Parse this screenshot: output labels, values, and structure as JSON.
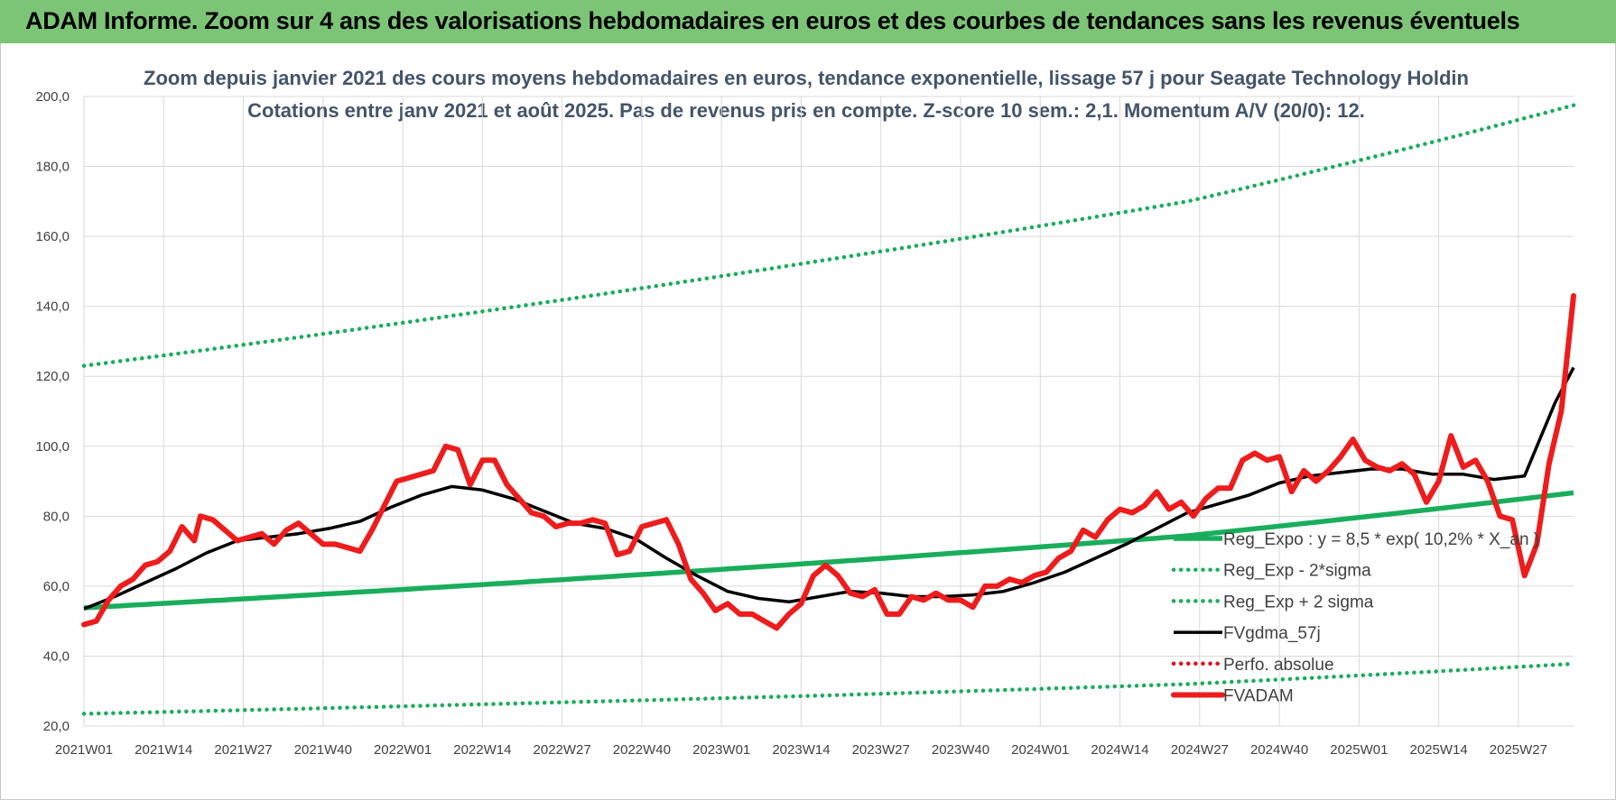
{
  "banner": {
    "title": "ADAM Informe. Zoom sur 4 ans des valorisations hebdomadaires en euros et des courbes de tendances sans les revenus éventuels"
  },
  "colors": {
    "banner": "#7cc576",
    "trend": "#19ad5c",
    "sigma": "#19ad5c",
    "fvgdma": "#000000",
    "perfo": "#e0101a",
    "fvadam": "#ee1c1c",
    "grid": "#d9d9d9",
    "subtitle": "#44546a"
  },
  "chart_data": {
    "type": "line",
    "subtitle": [
      "Zoom depuis janvier 2021 des cours moyens hebdomadaires en euros, tendance exponentielle, lissage 57 j pour Seagate Technology Holdin",
      "Cotations entre janv 2021 et août 2025.  Pas de revenus pris en compte. Z-score 10 sem.: 2,1. Momentum A/V (20/0): 12."
    ],
    "xlabel": "",
    "ylabel": "",
    "ylim": [
      20,
      200
    ],
    "y_ticks": [
      "20,0",
      "40,0",
      "60,0",
      "80,0",
      "100,0",
      "120,0",
      "140,0",
      "160,0",
      "180,0",
      "200,0"
    ],
    "x_ticks": [
      "2021W01",
      "2021W14",
      "2021W27",
      "2021W40",
      "2022W01",
      "2022W14",
      "2022W27",
      "2022W40",
      "2023W01",
      "2023W14",
      "2023W27",
      "2023W40",
      "2024W01",
      "2024W14",
      "2024W27",
      "2024W40",
      "2025W01",
      "2025W14",
      "2025W27"
    ],
    "n_weeks": 244,
    "grid": true,
    "legend_position": "bottom-right, inside plot",
    "legend": [
      "Reg_Expo : y = 8,5 * exp( 10,2% *  X_an )",
      "Reg_Exp - 2*sigma",
      "Reg_Exp + 2 sigma",
      "FVgdma_57j",
      "Perfo. absolue",
      "FVADAM"
    ],
    "series": [
      {
        "name": "Reg_Expo : y = 8,5 * exp( 10,2% *  X_an )",
        "style": "solid-thick",
        "color": "#19ad5c",
        "x": [
          0,
          60,
          120,
          180,
          243
        ],
        "values": [
          53.8,
          59.9,
          66.7,
          74.4,
          86.7
        ]
      },
      {
        "name": "Reg_Exp - 2*sigma",
        "style": "dotted",
        "color": "#19ad5c",
        "x": [
          0,
          60,
          120,
          180,
          243
        ],
        "values": [
          23.5,
          26.0,
          28.7,
          32.0,
          37.8
        ]
      },
      {
        "name": "Reg_Exp + 2 sigma",
        "style": "dotted",
        "color": "#19ad5c",
        "x": [
          0,
          60,
          120,
          180,
          243
        ],
        "values": [
          123.0,
          137.3,
          153.0,
          170.0,
          197.5
        ]
      },
      {
        "name": "FVgdma_57j",
        "style": "solid",
        "color": "#000000",
        "x": [
          0,
          5,
          10,
          15,
          20,
          25,
          30,
          35,
          40,
          45,
          50,
          55,
          60,
          65,
          70,
          75,
          80,
          85,
          90,
          95,
          100,
          105,
          110,
          115,
          120,
          125,
          130,
          135,
          140,
          145,
          150,
          155,
          160,
          165,
          170,
          175,
          180,
          185,
          190,
          195,
          200,
          205,
          210,
          215,
          220,
          225,
          230,
          235,
          240,
          243
        ],
        "values": [
          53.5,
          57,
          61,
          65,
          69.5,
          73,
          74,
          75,
          76.5,
          78.5,
          82.5,
          86,
          88.5,
          87.5,
          85,
          81.5,
          78,
          76.5,
          73.5,
          68,
          63,
          58.5,
          56.5,
          55.5,
          57,
          58.5,
          58,
          57,
          57,
          57.5,
          58.5,
          61,
          64,
          68,
          72,
          76.5,
          81,
          83.5,
          86,
          89.5,
          91.5,
          92.5,
          93.5,
          93.5,
          92,
          92,
          90.5,
          91.5,
          112.5,
          122.5
        ]
      },
      {
        "name": "Perfo. absolue",
        "style": "dotted",
        "color": "#e0101a",
        "x": [],
        "values": []
      },
      {
        "name": "FVADAM",
        "style": "solid-thick",
        "color": "#ee1c1c",
        "x": [
          0,
          2,
          4,
          6,
          8,
          10,
          12,
          14,
          16,
          18,
          19,
          21,
          23,
          25,
          27,
          29,
          31,
          33,
          35,
          37,
          39,
          41,
          43,
          45,
          47,
          49,
          51,
          53,
          55,
          57,
          59,
          61,
          63,
          65,
          67,
          69,
          71,
          73,
          75,
          77,
          79,
          81,
          83,
          85,
          87,
          89,
          91,
          93,
          95,
          97,
          99,
          101,
          103,
          105,
          107,
          109,
          111,
          113,
          115,
          117,
          119,
          121,
          123,
          125,
          127,
          129,
          131,
          133,
          135,
          137,
          139,
          141,
          143,
          145,
          147,
          149,
          151,
          153,
          155,
          157,
          159,
          161,
          163,
          165,
          167,
          169,
          171,
          173,
          175,
          177,
          179,
          181,
          183,
          185,
          187,
          189,
          191,
          193,
          195,
          197,
          199,
          201,
          203,
          205,
          207,
          209,
          211,
          213,
          215,
          217,
          219,
          221,
          223,
          225,
          227,
          229,
          231,
          233,
          235,
          237,
          239,
          241,
          243
        ],
        "values": [
          49,
          50,
          56,
          60,
          62,
          66,
          67,
          70,
          77,
          73,
          80,
          79,
          76,
          73,
          74,
          75,
          72,
          76,
          78,
          75,
          72,
          72,
          71,
          70,
          76,
          83,
          90,
          91,
          92,
          93,
          100,
          99,
          89,
          96,
          96,
          89,
          85,
          81,
          80,
          77,
          78,
          78,
          79,
          78,
          69,
          70,
          77,
          78,
          79,
          72,
          62,
          58,
          53,
          55,
          52,
          52,
          50,
          48,
          52,
          55,
          63,
          66,
          63,
          58,
          57,
          59,
          52,
          52,
          57,
          56,
          58,
          56,
          56,
          54,
          60,
          60,
          62,
          61,
          63,
          64,
          68,
          70,
          76,
          74,
          79,
          82,
          81,
          83,
          87,
          82,
          84,
          80,
          85,
          88,
          88,
          96,
          98,
          96,
          97,
          87,
          93,
          90,
          93,
          97,
          102,
          96,
          94,
          93,
          95,
          92,
          84,
          90,
          103,
          94,
          96,
          90,
          80,
          79,
          63,
          72,
          95,
          110,
          143
        ]
      }
    ]
  }
}
